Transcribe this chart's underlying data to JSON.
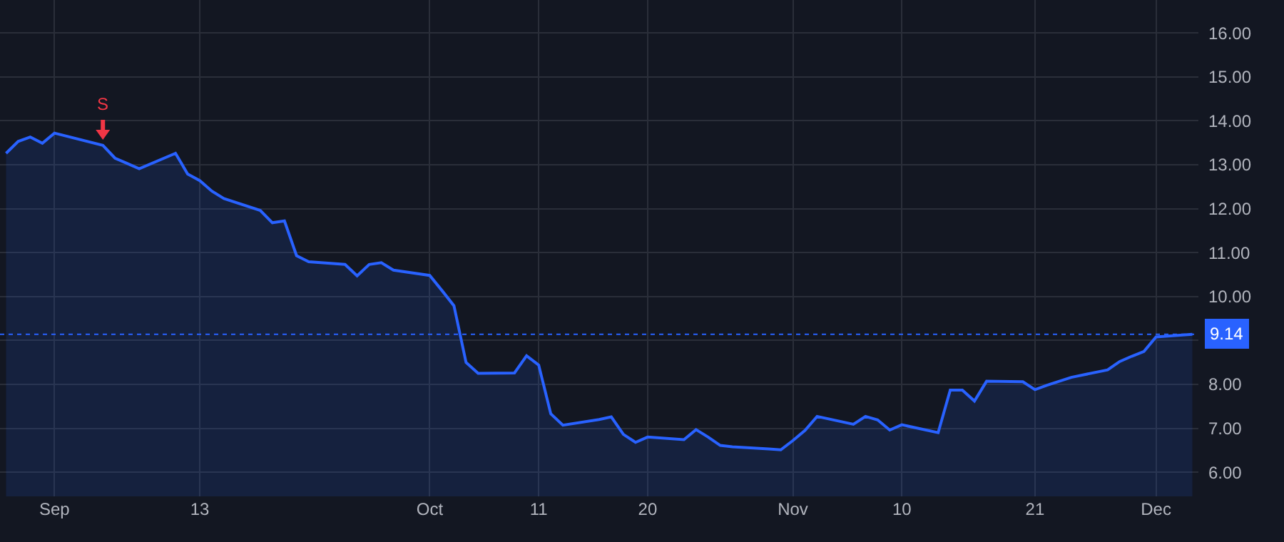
{
  "chart_data": {
    "type": "area",
    "x": [
      "--08-28",
      "--08-29",
      "--08-30",
      "--08-31",
      "--09-01",
      "--09-05",
      "--09-06",
      "--09-07",
      "--09-08",
      "--09-11",
      "--09-12",
      "--09-13",
      "--09-14",
      "--09-15",
      "--09-18",
      "--09-19",
      "--09-20",
      "--09-21",
      "--09-22",
      "--09-25",
      "--09-26",
      "--09-27",
      "--09-28",
      "--09-29",
      "--10-02",
      "--10-03",
      "--10-04",
      "--10-05",
      "--10-06",
      "--10-09",
      "--10-10",
      "--10-11",
      "--10-12",
      "--10-13",
      "--10-16",
      "--10-17",
      "--10-18",
      "--10-19",
      "--10-20",
      "--10-23",
      "--10-24",
      "--10-25",
      "--10-26",
      "--10-27",
      "--10-30",
      "--10-31",
      "--11-01",
      "--11-02",
      "--11-03",
      "--11-06",
      "--11-07",
      "--11-08",
      "--11-09",
      "--11-10",
      "--11-13",
      "--11-14",
      "--11-15",
      "--11-16",
      "--11-17",
      "--11-20",
      "--11-21",
      "--11-22",
      "--11-24",
      "--11-27",
      "--11-28",
      "--11-29",
      "--11-30",
      "--12-01",
      "--12-04"
    ],
    "series": [
      {
        "color": "#2962ff",
        "values": [
          13.26,
          13.53,
          13.63,
          13.49,
          13.72,
          13.44,
          13.15,
          13.03,
          12.91,
          13.26,
          12.79,
          12.64,
          12.4,
          12.23,
          11.96,
          11.68,
          11.72,
          10.93,
          10.79,
          10.73,
          10.47,
          10.73,
          10.77,
          10.6,
          10.48,
          10.14,
          9.79,
          8.5,
          8.25,
          8.26,
          8.65,
          8.44,
          7.33,
          7.07,
          7.2,
          7.26,
          6.86,
          6.68,
          6.8,
          6.74,
          6.97,
          6.8,
          6.61,
          6.58,
          6.53,
          6.51,
          6.72,
          6.95,
          7.27,
          7.09,
          7.27,
          7.19,
          6.96,
          7.08,
          6.9,
          7.87,
          7.87,
          7.62,
          8.07,
          8.06,
          7.88,
          7.98,
          8.16,
          8.33,
          8.52,
          8.64,
          8.75,
          9.08,
          9.14
        ]
      }
    ],
    "xlim": [
      "--08-27T12:00",
      "--12-04T12:00"
    ],
    "xticks": [
      {
        "value": "--09-01",
        "label": "Sep"
      },
      {
        "value": "--09-13",
        "label": "13"
      },
      {
        "value": "--10-02",
        "label": "Oct"
      },
      {
        "value": "--10-11",
        "label": "11"
      },
      {
        "value": "--10-20",
        "label": "20"
      },
      {
        "value": "--11-01",
        "label": "Nov"
      },
      {
        "value": "--11-10",
        "label": "10"
      },
      {
        "value": "--11-21",
        "label": "21"
      },
      {
        "value": "--12-01",
        "label": "Dec"
      }
    ],
    "ylim": [
      5.45,
      16.75
    ],
    "yticks": [
      {
        "value": 6,
        "label": "6.00"
      },
      {
        "value": 7,
        "label": "7.00"
      },
      {
        "value": 8,
        "label": "8.00"
      },
      {
        "value": 9,
        "label": null
      },
      {
        "value": 10,
        "label": "10.00"
      },
      {
        "value": 11,
        "label": "11.00"
      },
      {
        "value": 12,
        "label": "12.00"
      },
      {
        "value": 13,
        "label": "13.00"
      },
      {
        "value": 14,
        "label": "14.00"
      },
      {
        "value": 15,
        "label": "15.00"
      },
      {
        "value": 16,
        "label": "16.00"
      }
    ],
    "grid": true,
    "ref_lines": [
      {
        "axis": "y",
        "value": 9.14,
        "label": "9.14",
        "color": "#2962ff",
        "line_style": "dotted"
      }
    ],
    "annotations": [
      {
        "text": "S",
        "x": "--09-05",
        "y": 13.44
      }
    ]
  }
}
